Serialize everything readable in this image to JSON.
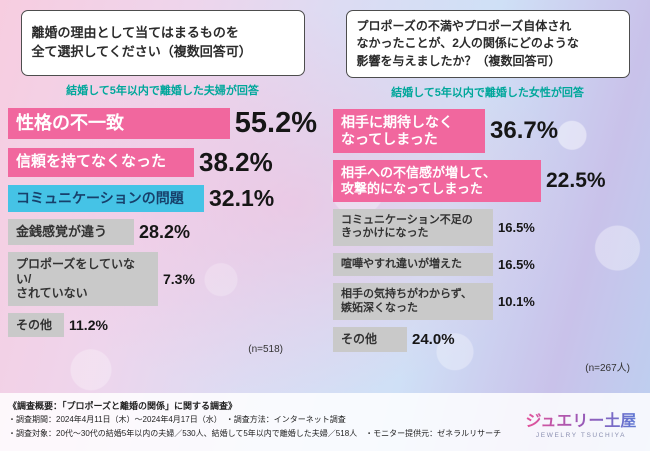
{
  "left": {
    "title": "離婚の理由として当てはまるものを\n全て選択してください（複数回答可）",
    "subtitle": "結婚して5年以内で離婚した夫婦が回答",
    "n_note": "(n=518)",
    "bars": [
      {
        "label": "性格の不一致",
        "value": "55.2%"
      },
      {
        "label": "信頼を持てなくなった",
        "value": "38.2%"
      },
      {
        "label": "コミュニケーションの問題",
        "value": "32.1%"
      },
      {
        "label": "金銭感覚が違う",
        "value": "28.2%"
      },
      {
        "label": "プロポーズをしていない/\nされていない",
        "value": "7.3%"
      },
      {
        "label": "その他",
        "value": "11.2%"
      }
    ]
  },
  "right": {
    "title": "プロポーズの不満やプロポーズ自体され\nなかったことが、2人の関係にどのような\n影響を与えましたか？（複数回答可）",
    "subtitle": "結婚して5年以内で離婚した女性が回答",
    "n_note": "(n=267人)",
    "bars": [
      {
        "label": "相手に期待しなく\nなってしまった",
        "value": "36.7%"
      },
      {
        "label": "相手への不信感が増して、\n攻撃的になってしまった",
        "value": "22.5%"
      },
      {
        "label": "コミュニケーション不足の\nきっかけになった",
        "value": "16.5%"
      },
      {
        "label": "喧嘩やすれ違いが増えた",
        "value": "16.5%"
      },
      {
        "label": "相手の気持ちがわからず、\n嫉妬深くなった",
        "value": "10.1%"
      },
      {
        "label": "その他",
        "value": "24.0%"
      }
    ]
  },
  "footer": {
    "line1": "《調査概要：「プロポーズと離婚の関係」に関する調査》",
    "line2": "・調査期間：2024年4月11日（木）～2024年4月17日（水）　・調査方法：インターネット調査",
    "line3": "・調査対象：20代～30代の結婚5年以内の夫婦／530人、結婚して5年以内で離婚した夫婦／518人　・モニター提供元：ゼネラルリサーチ"
  },
  "logo": {
    "name": "ジュエリー土屋",
    "sub": "JEWELRY TSUCHIYA"
  },
  "colors": {
    "pink": "#f1679e",
    "cyan": "#45c3e6",
    "gray": "#c9c9c9",
    "teal": "#00a79b"
  },
  "chart_data": [
    {
      "type": "bar",
      "title": "離婚の理由として当てはまるものを全て選択してください（複数回答可）",
      "subtitle": "結婚して5年以内で離婚した夫婦が回答",
      "sample_size": 518,
      "categories": [
        "性格の不一致",
        "信頼を持てなくなった",
        "コミュニケーションの問題",
        "金銭感覚が違う",
        "プロポーズをしていない/されていない",
        "その他"
      ],
      "values": [
        55.2,
        38.2,
        32.1,
        28.2,
        7.3,
        11.2
      ],
      "unit": "%",
      "orientation": "horizontal",
      "grid": false,
      "legend": false
    },
    {
      "type": "bar",
      "title": "プロポーズの不満やプロポーズ自体されなかったことが、2人の関係にどのような影響を与えましたか？（複数回答可）",
      "subtitle": "結婚して5年以内で離婚した女性が回答",
      "sample_size": 267,
      "categories": [
        "相手に期待しなくなってしまった",
        "相手への不信感が増して、攻撃的になってしまった",
        "コミュニケーション不足のきっかけになった",
        "喧嘩やすれ違いが増えた",
        "相手の気持ちがわからず、嫉妬深くなった",
        "その他"
      ],
      "values": [
        36.7,
        22.5,
        16.5,
        16.5,
        10.1,
        24.0
      ],
      "unit": "%",
      "orientation": "horizontal",
      "grid": false,
      "legend": false
    }
  ]
}
